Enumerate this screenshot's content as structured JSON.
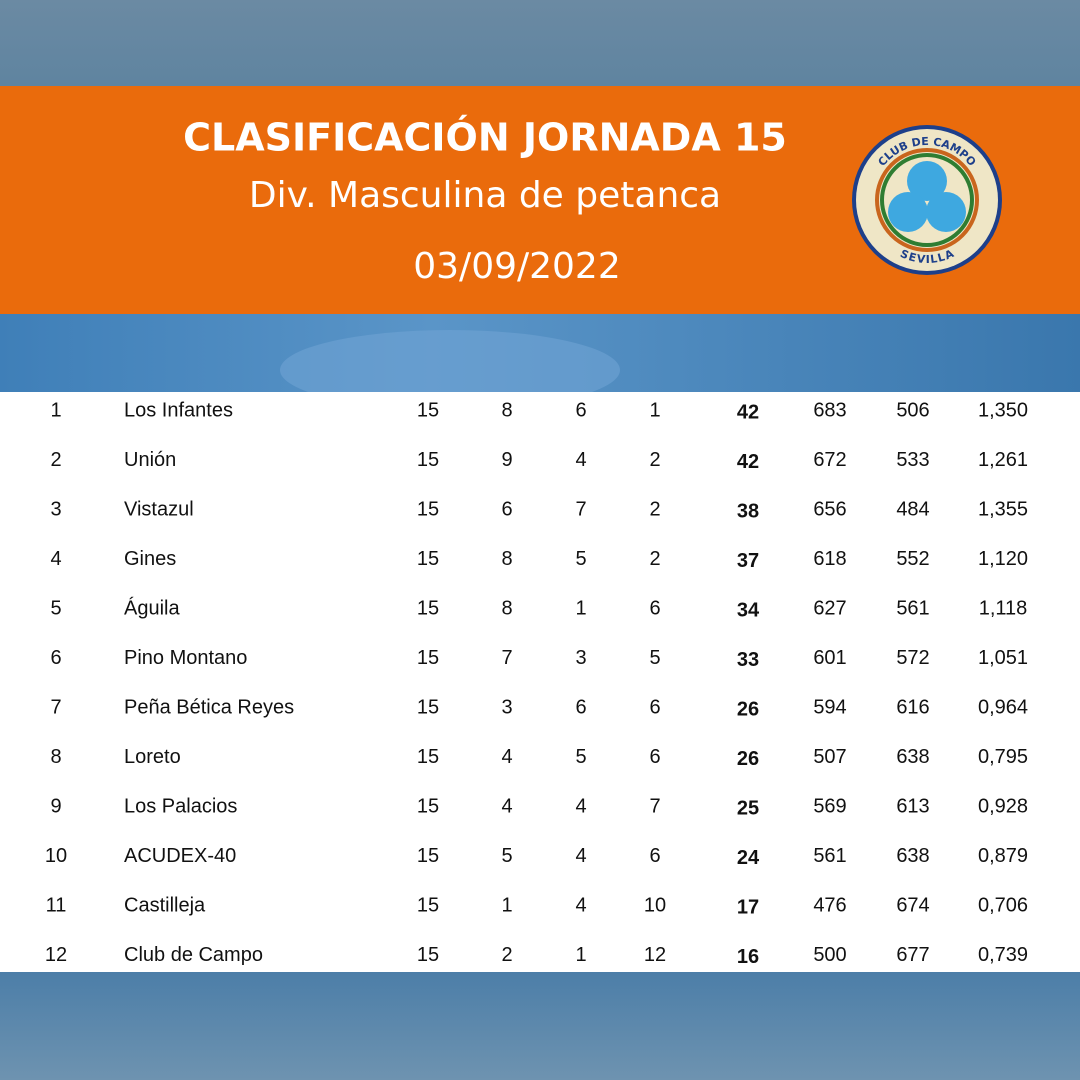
{
  "header": {
    "title": "CLASIFICACIÓN JORNADA 15",
    "subtitle": "Div. Masculina de petanca",
    "date": "03/09/2022"
  },
  "logo": {
    "top_text": "CLUB DE CAMPO",
    "bottom_text": "SEVILLA"
  },
  "table": {
    "rows": [
      [
        "1",
        "Los Infantes",
        "15",
        "8",
        "6",
        "1",
        "42",
        "683",
        "506",
        "1,350"
      ],
      [
        "2",
        "Unión",
        "15",
        "9",
        "4",
        "2",
        "42",
        "672",
        "533",
        "1,261"
      ],
      [
        "3",
        "Vistazul",
        "15",
        "6",
        "7",
        "2",
        "38",
        "656",
        "484",
        "1,355"
      ],
      [
        "4",
        "Gines",
        "15",
        "8",
        "5",
        "2",
        "37",
        "618",
        "552",
        "1,120"
      ],
      [
        "5",
        "Águila",
        "15",
        "8",
        "1",
        "6",
        "34",
        "627",
        "561",
        "1,118"
      ],
      [
        "6",
        "Pino Montano",
        "15",
        "7",
        "3",
        "5",
        "33",
        "601",
        "572",
        "1,051"
      ],
      [
        "7",
        "Peña Bética Reyes",
        "15",
        "3",
        "6",
        "6",
        "26",
        "594",
        "616",
        "0,964"
      ],
      [
        "8",
        "Loreto",
        "15",
        "4",
        "5",
        "6",
        "26",
        "507",
        "638",
        "0,795"
      ],
      [
        "9",
        "Los Palacios",
        "15",
        "4",
        "4",
        "7",
        "25",
        "569",
        "613",
        "0,928"
      ],
      [
        "10",
        "ACUDEX-40",
        "15",
        "5",
        "4",
        "6",
        "24",
        "561",
        "638",
        "0,879"
      ],
      [
        "11",
        "Castilleja",
        "15",
        "1",
        "4",
        "10",
        "17",
        "476",
        "674",
        "0,706"
      ],
      [
        "12",
        "Club de Campo",
        "15",
        "2",
        "1",
        "12",
        "16",
        "500",
        "677",
        "0,739"
      ]
    ]
  }
}
